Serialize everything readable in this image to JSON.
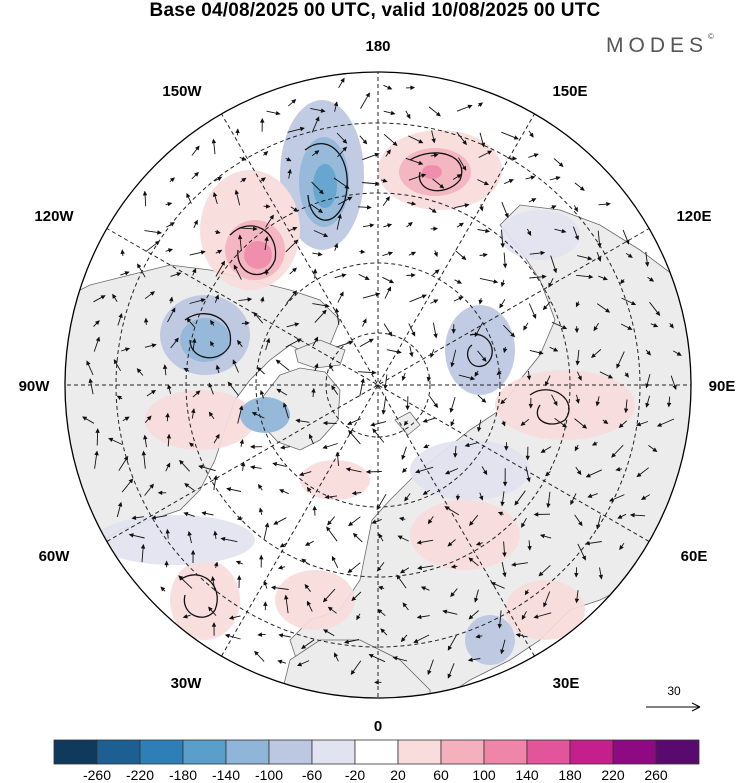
{
  "title": "Base 04/08/2025 00 UTC, valid 10/08/2025 00 UTC",
  "brand": "MODES",
  "brand_mark": "©",
  "longitude_labels": {
    "top": "180",
    "bottom": "0",
    "left": "90W",
    "right": "90E",
    "upper_left": "150W",
    "upper_right": "150E",
    "mid_upper_left": "120W",
    "mid_upper_right": "120E",
    "mid_lower_left": "60W",
    "mid_lower_right": "60E",
    "lower_left": "30W",
    "lower_right": "30E"
  },
  "reference_vector": {
    "label": "30"
  },
  "colorbar": {
    "ticks": [
      "-260",
      "-220",
      "-180",
      "-140",
      "-100",
      "-60",
      "-20",
      "20",
      "60",
      "100",
      "140",
      "180",
      "220",
      "260"
    ],
    "colors": [
      "#0f3a5e",
      "#1d5f93",
      "#2e7fb8",
      "#5a9fcb",
      "#8fb5d9",
      "#bcc8e2",
      "#e2e3f0",
      "#ffffff",
      "#f9dcdc",
      "#f4b1bd",
      "#ef85a8",
      "#e2559b",
      "#c41f8b",
      "#8e0a82",
      "#5a0a6e"
    ]
  },
  "field_colors": {
    "land": "#ececec",
    "ocean": "#ffffff",
    "coast": "#555555",
    "grid": "#222222"
  }
}
